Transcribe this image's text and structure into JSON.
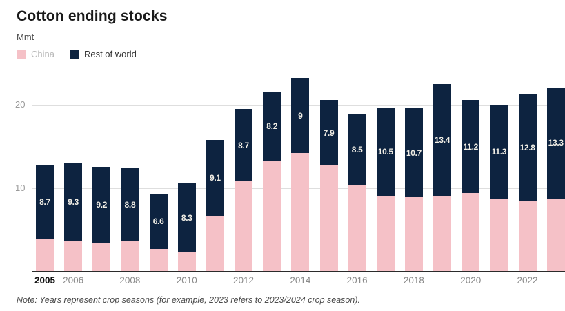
{
  "header": {
    "title": "Cotton ending stocks",
    "unit": "Mmt"
  },
  "legend": {
    "items": [
      {
        "label": "China",
        "swatch_color": "#f5c1c7",
        "text_color": "#b9b9b9"
      },
      {
        "label": "Rest of world",
        "swatch_color": "#0d2340",
        "text_color": "#333333"
      }
    ]
  },
  "note": "Note: Years represent crop seasons (for example, 2023 refers to 2023/2024 crop season).",
  "chart_data": {
    "type": "bar",
    "stacked": true,
    "title": "Cotton ending stocks",
    "ylabel": "Mmt",
    "xlabel": "",
    "grid": "horizontal",
    "legend_position": "top-left",
    "ylim": [
      0,
      23.5
    ],
    "yticks": [
      10,
      20
    ],
    "categories": [
      2005,
      2006,
      2007,
      2008,
      2009,
      2010,
      2011,
      2012,
      2013,
      2014,
      2015,
      2016,
      2017,
      2018,
      2019,
      2020,
      2021,
      2022,
      2023
    ],
    "series": [
      {
        "name": "China",
        "color": "#f5c1c7",
        "values": [
          4.0,
          3.7,
          3.4,
          3.6,
          2.7,
          2.3,
          6.7,
          10.8,
          13.3,
          14.2,
          12.7,
          10.4,
          9.1,
          8.9,
          9.1,
          9.4,
          8.7,
          8.5,
          8.8
        ]
      },
      {
        "name": "Rest of world",
        "color": "#0d2340",
        "values": [
          8.7,
          9.3,
          9.2,
          8.8,
          6.6,
          8.3,
          9.1,
          8.7,
          8.2,
          9.0,
          7.9,
          8.5,
          10.5,
          10.7,
          13.4,
          11.2,
          11.3,
          12.8,
          13.3
        ],
        "data_labels": [
          "8.7",
          "9.3",
          "9.2",
          "8.8",
          "6.6",
          "8.3",
          "9.1",
          "8.7",
          "8.2",
          "9",
          "7.9",
          "8.5",
          "10.5",
          "10.7",
          "13.4",
          "11.2",
          "11.3",
          "12.8",
          "13.3"
        ],
        "data_label_color": "#f2efe6"
      }
    ],
    "x_tick_labels": [
      {
        "text": "2005",
        "bar_index": 0,
        "bold": true
      },
      {
        "text": "2006",
        "bar_index": 1,
        "bold": false
      },
      {
        "text": "2008",
        "bar_index": 3,
        "bold": false
      },
      {
        "text": "2010",
        "bar_index": 5,
        "bold": false
      },
      {
        "text": "2012",
        "bar_index": 7,
        "bold": false
      },
      {
        "text": "2014",
        "bar_index": 9,
        "bold": false
      },
      {
        "text": "2016",
        "bar_index": 11,
        "bold": false
      },
      {
        "text": "2018",
        "bar_index": 13,
        "bold": false
      },
      {
        "text": "2020",
        "bar_index": 15,
        "bold": false
      },
      {
        "text": "2022",
        "bar_index": 17,
        "bold": false
      }
    ]
  }
}
